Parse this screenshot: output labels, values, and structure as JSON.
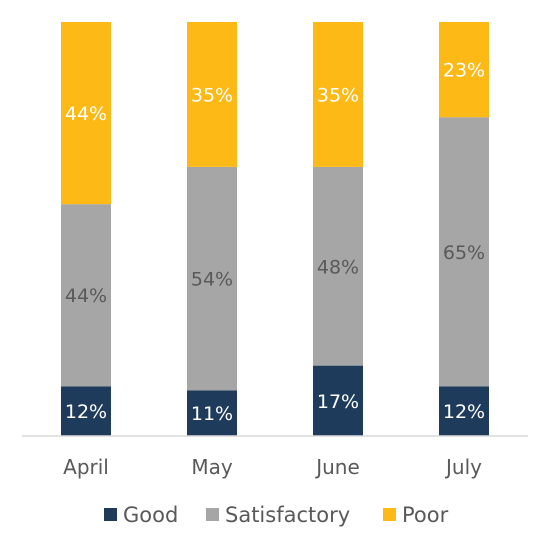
{
  "chart_data": {
    "type": "bar",
    "stacked": true,
    "percent_stacked": true,
    "categories": [
      "April",
      "May",
      "June",
      "July"
    ],
    "series": [
      {
        "name": "Good",
        "values": [
          12,
          11,
          17,
          12
        ],
        "color": "#1f3b5c",
        "label_color": "#ffffff"
      },
      {
        "name": "Satisfactory",
        "values": [
          44,
          54,
          48,
          65
        ],
        "color": "#a6a6a6",
        "label_color": "#595959"
      },
      {
        "name": "Poor",
        "values": [
          44,
          35,
          35,
          23
        ],
        "color": "#fdb915",
        "label_color": "#ffffff"
      }
    ],
    "value_suffix": "%",
    "ylim": [
      0,
      100
    ],
    "legend_position": "bottom",
    "grid": false
  }
}
